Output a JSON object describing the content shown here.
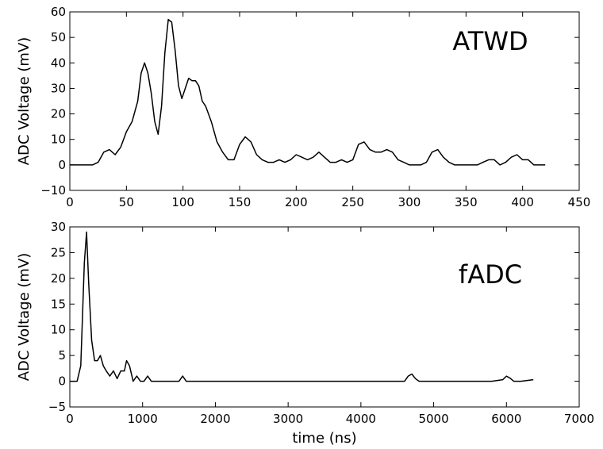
{
  "chart_data": [
    {
      "type": "line",
      "title": "",
      "annotation": "ATWD",
      "xlabel": "",
      "ylabel": "ADC Voltage (mV)",
      "xlim": [
        0,
        450
      ],
      "ylim": [
        -10,
        60
      ],
      "xticks": [
        0,
        50,
        100,
        150,
        200,
        250,
        300,
        350,
        400,
        450
      ],
      "yticks": [
        -10,
        0,
        10,
        20,
        30,
        40,
        50,
        60
      ],
      "grid": false,
      "series": [
        {
          "color": "#000000",
          "x": [
            0,
            10,
            20,
            25,
            30,
            35,
            40,
            45,
            50,
            55,
            60,
            63,
            66,
            69,
            72,
            75,
            78,
            81,
            84,
            87,
            90,
            93,
            96,
            99,
            102,
            105,
            108,
            111,
            114,
            117,
            120,
            125,
            130,
            135,
            140,
            145,
            150,
            155,
            160,
            165,
            170,
            175,
            180,
            185,
            190,
            195,
            200,
            205,
            210,
            215,
            220,
            225,
            230,
            235,
            240,
            245,
            250,
            255,
            260,
            265,
            270,
            275,
            280,
            285,
            290,
            295,
            300,
            305,
            310,
            315,
            320,
            325,
            330,
            335,
            340,
            345,
            350,
            355,
            360,
            365,
            370,
            375,
            380,
            385,
            390,
            395,
            400,
            405,
            410,
            415,
            420
          ],
          "y": [
            0,
            0,
            0,
            1,
            5,
            6,
            4,
            7,
            13,
            17,
            25,
            36,
            40,
            36,
            28,
            17,
            12,
            23,
            44,
            57,
            56,
            45,
            31,
            26,
            30,
            34,
            33,
            33,
            31,
            25,
            23,
            17,
            9,
            5,
            2,
            2,
            8,
            11,
            9,
            4,
            2,
            1,
            1,
            2,
            1,
            2,
            4,
            3,
            2,
            3,
            5,
            3,
            1,
            1,
            2,
            1,
            2,
            8,
            9,
            6,
            5,
            5,
            6,
            5,
            2,
            1,
            0,
            0,
            0,
            1,
            5,
            6,
            3,
            1,
            0,
            0,
            0,
            0,
            0,
            1,
            2,
            2,
            0,
            1,
            3,
            4,
            2,
            2,
            0,
            0,
            0
          ],
          "_unused": false
        }
      ]
    },
    {
      "type": "line",
      "title": "",
      "annotation": "fADC",
      "xlabel": "time (ns)",
      "ylabel": "ADC Voltage (mV)",
      "xlim": [
        0,
        7000
      ],
      "ylim": [
        -5,
        30
      ],
      "xticks": [
        0,
        1000,
        2000,
        3000,
        4000,
        5000,
        6000,
        7000
      ],
      "yticks": [
        -5,
        0,
        5,
        10,
        15,
        20,
        25,
        30
      ],
      "grid": false,
      "series": [
        {
          "color": "#000000",
          "x": [
            0,
            100,
            150,
            200,
            230,
            260,
            300,
            340,
            380,
            420,
            460,
            500,
            550,
            600,
            650,
            700,
            750,
            780,
            820,
            870,
            920,
            970,
            1020,
            1070,
            1120,
            1200,
            1300,
            1400,
            1500,
            1550,
            1600,
            1700,
            1800,
            1900,
            2000,
            2200,
            2400,
            2600,
            2800,
            3000,
            3200,
            3400,
            3600,
            3800,
            4000,
            4200,
            4400,
            4600,
            4650,
            4700,
            4750,
            4800,
            5000,
            5200,
            5400,
            5600,
            5800,
            5950,
            6000,
            6050,
            6100,
            6200,
            6370
          ],
          "y": [
            0,
            0,
            3,
            23,
            29,
            19,
            8,
            4,
            4,
            5,
            3,
            2,
            1,
            2,
            0.5,
            2,
            2,
            4,
            3,
            0,
            1,
            0,
            0,
            1,
            0,
            0,
            0,
            0,
            0,
            1,
            0,
            0,
            0,
            0,
            0,
            0,
            0,
            0,
            0,
            0,
            0,
            0,
            0,
            0,
            0,
            0,
            0,
            0,
            1,
            1.4,
            0.5,
            0,
            0,
            0,
            0,
            0,
            0,
            0.3,
            1,
            0.6,
            0,
            0,
            0.3
          ]
        }
      ]
    }
  ]
}
